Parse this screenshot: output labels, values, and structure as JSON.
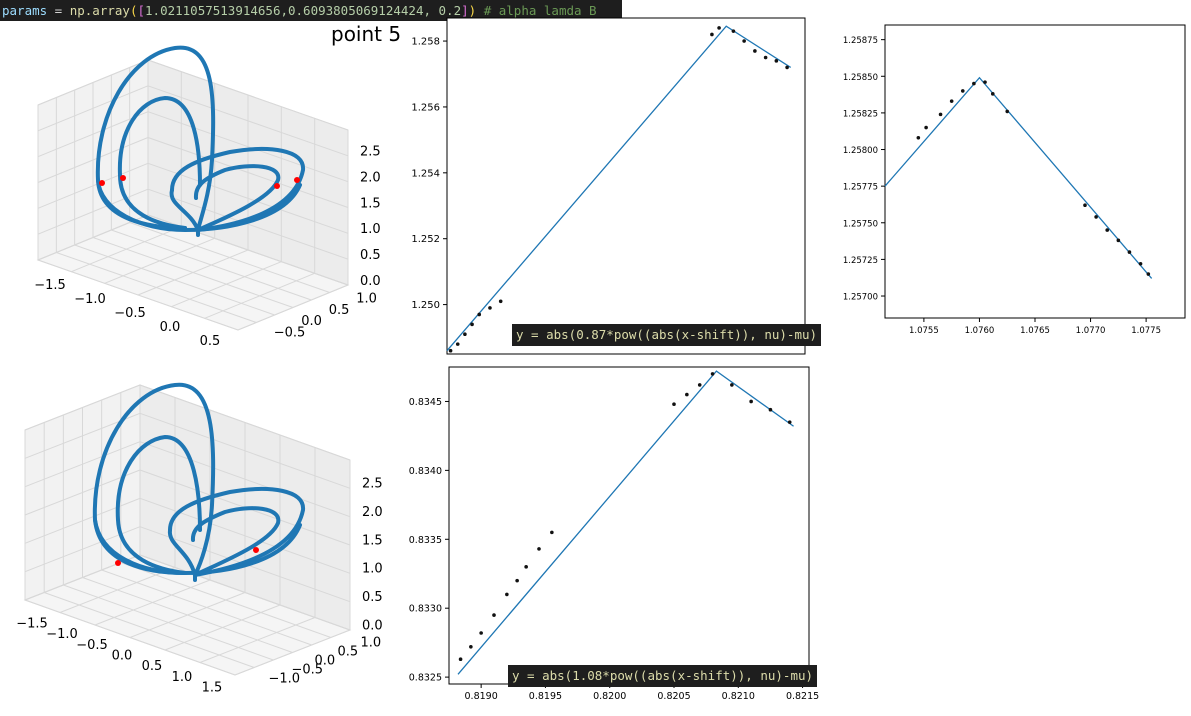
{
  "code_banner": {
    "prefix": "params",
    "eq": " = ",
    "fn": "np.array",
    "values": "1.0211057513914656,0.6093805069124424, 0.2",
    "comment": "# alpha lamda B"
  },
  "title": "point 5",
  "formulas": {
    "top": "y = abs(0.87*pow((abs(x-shift)), nu)-mu)",
    "bottom": "y = abs(1.08*pow((abs(x-shift)), nu)-mu)"
  },
  "chart_data": [
    {
      "type": "line3d",
      "panel": "top-left",
      "x_ticks": [
        "−1.5",
        "−1.0",
        "−0.5",
        "0.0",
        "0.5"
      ],
      "y_ticks": [
        "−0.5",
        "0.0",
        "0.5",
        "1.0"
      ],
      "z_ticks": [
        "0.0",
        "0.5",
        "1.0",
        "1.5",
        "2.0",
        "2.5"
      ],
      "series_color": "#1f77b4",
      "marker_color": "#ff0000"
    },
    {
      "type": "line3d",
      "panel": "bottom-left",
      "x_ticks": [
        "−1.5",
        "−1.0",
        "−0.5",
        "0.0",
        "0.5",
        "1.0",
        "1.5"
      ],
      "y_ticks": [
        "−1.0",
        "−0.5",
        "0.0",
        "0.5",
        "1.0"
      ],
      "z_ticks": [
        "0.0",
        "0.5",
        "1.0",
        "1.5",
        "2.0",
        "2.5"
      ],
      "series_color": "#1f77b4",
      "marker_color": "#ff0000"
    },
    {
      "type": "scatter",
      "panel": "top-middle",
      "y_ticks": [
        "1.250",
        "1.252",
        "1.254",
        "1.256",
        "1.258"
      ],
      "ylim": [
        1.2485,
        1.2587
      ],
      "line": [
        [
          0,
          1.2486
        ],
        [
          0.78,
          1.25845
        ],
        [
          0.96,
          1.2572
        ]
      ],
      "points": [
        [
          0.01,
          1.2486
        ],
        [
          0.03,
          1.2488
        ],
        [
          0.05,
          1.2491
        ],
        [
          0.07,
          1.2494
        ],
        [
          0.09,
          1.2497
        ],
        [
          0.12,
          1.2499
        ],
        [
          0.15,
          1.2501
        ],
        [
          0.74,
          1.2582
        ],
        [
          0.76,
          1.2584
        ],
        [
          0.8,
          1.2583
        ],
        [
          0.83,
          1.258
        ],
        [
          0.86,
          1.2577
        ],
        [
          0.89,
          1.2575
        ],
        [
          0.92,
          1.2574
        ],
        [
          0.95,
          1.2572
        ]
      ]
    },
    {
      "type": "scatter",
      "panel": "top-right",
      "x_ticks": [
        "1.0755",
        "1.0760",
        "1.0765",
        "1.0770",
        "1.0775"
      ],
      "y_ticks": [
        "1.25700",
        "1.25725",
        "1.25750",
        "1.25775",
        "1.25800",
        "1.25825",
        "1.25850",
        "1.25875"
      ],
      "xlim": [
        1.07515,
        1.07785
      ],
      "ylim": [
        1.25685,
        1.25885
      ],
      "line": [
        [
          1.07515,
          1.25775
        ],
        [
          1.076,
          1.25849
        ],
        [
          1.07755,
          1.25712
        ]
      ],
      "points": [
        [
          1.07545,
          1.25808
        ],
        [
          1.07552,
          1.25815
        ],
        [
          1.07565,
          1.25824
        ],
        [
          1.07575,
          1.25833
        ],
        [
          1.07585,
          1.2584
        ],
        [
          1.07595,
          1.25845
        ],
        [
          1.07605,
          1.25846
        ],
        [
          1.07612,
          1.25838
        ],
        [
          1.07625,
          1.25826
        ],
        [
          1.07695,
          1.25762
        ],
        [
          1.07705,
          1.25754
        ],
        [
          1.07715,
          1.25745
        ],
        [
          1.07725,
          1.25738
        ],
        [
          1.07735,
          1.2573
        ],
        [
          1.07745,
          1.25722
        ],
        [
          1.07752,
          1.25715
        ]
      ]
    },
    {
      "type": "scatter",
      "panel": "bottom-middle",
      "x_ticks": [
        "0.8190",
        "0.8195",
        "0.8200",
        "0.8205",
        "0.8210",
        "0.8215"
      ],
      "y_ticks": [
        "0.8325",
        "0.8330",
        "0.8335",
        "0.8340",
        "0.8345"
      ],
      "xlim": [
        0.81875,
        0.82155
      ],
      "ylim": [
        0.83245,
        0.83475
      ],
      "line": [
        [
          0.81882,
          0.83252
        ],
        [
          0.82083,
          0.83472
        ],
        [
          0.82143,
          0.83432
        ]
      ],
      "points": [
        [
          0.81884,
          0.83263
        ],
        [
          0.81892,
          0.83272
        ],
        [
          0.819,
          0.83282
        ],
        [
          0.8191,
          0.83295
        ],
        [
          0.8192,
          0.8331
        ],
        [
          0.81928,
          0.8332
        ],
        [
          0.81935,
          0.8333
        ],
        [
          0.81945,
          0.83343
        ],
        [
          0.81955,
          0.83355
        ],
        [
          0.8205,
          0.83448
        ],
        [
          0.8206,
          0.83455
        ],
        [
          0.8207,
          0.83462
        ],
        [
          0.8208,
          0.8347
        ],
        [
          0.82095,
          0.83462
        ],
        [
          0.8211,
          0.8345
        ],
        [
          0.82125,
          0.83444
        ],
        [
          0.8214,
          0.83435
        ]
      ]
    }
  ]
}
